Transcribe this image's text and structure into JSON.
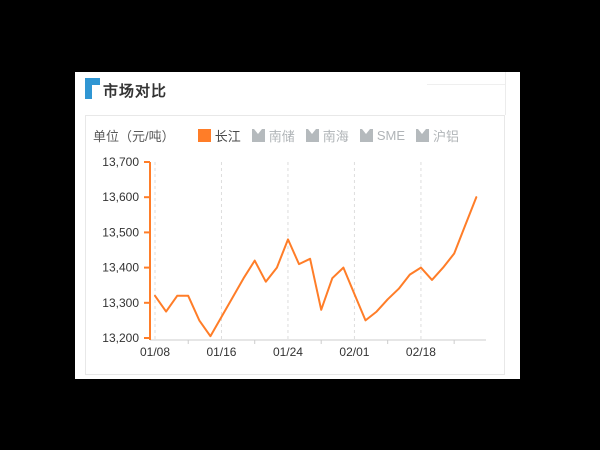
{
  "page": {
    "background": "#000000",
    "panel_background": "#ffffff"
  },
  "header": {
    "title": "市场对比",
    "accent_color": "#3096d3"
  },
  "legend": {
    "unit_label": "单位（元/吨）",
    "items": [
      {
        "label": "长江",
        "active": true,
        "color": "#ff7d28"
      },
      {
        "label": "南储",
        "active": false,
        "color": "#b5babd"
      },
      {
        "label": "南海",
        "active": false,
        "color": "#b5babd"
      },
      {
        "label": "SME",
        "active": false,
        "color": "#b5babd"
      },
      {
        "label": "沪铝",
        "active": false,
        "color": "#b5babd"
      }
    ]
  },
  "chart_data": {
    "type": "line",
    "title": "市场对比",
    "ylabel": "单位（元/吨）",
    "series": [
      {
        "name": "长江",
        "color": "#ff7d28",
        "values": [
          13320,
          13275,
          13320,
          13320,
          13250,
          13205,
          13260,
          13315,
          13370,
          13420,
          13360,
          13400,
          13480,
          13410,
          13425,
          13280,
          13370,
          13400,
          13325,
          13250,
          13275,
          13310,
          13340,
          13380,
          13400,
          13365,
          13400,
          13440,
          13520,
          13600
        ]
      }
    ],
    "inactive_series": [
      "南储",
      "南海",
      "SME",
      "沪铝"
    ],
    "x_axis": {
      "tick_labels": [
        "01/08",
        "01/16",
        "01/24",
        "02/01",
        "02/18"
      ],
      "tick_point_indices": [
        0,
        6,
        12,
        18,
        24
      ],
      "num_points": 30,
      "label_color": "#333333",
      "line_color": "#cccccc"
    },
    "y_axis": {
      "min": 13200,
      "max": 13700,
      "tick_labels": [
        "13,700",
        "13,600",
        "13,500",
        "13,400",
        "13,300",
        "13,200"
      ],
      "tick_values": [
        13700,
        13600,
        13500,
        13400,
        13300,
        13200
      ],
      "label_color": "#333333",
      "axis_color": "#ff7d28"
    },
    "grid": {
      "vertical_dashed": true,
      "gridline_color": "#dddddd"
    },
    "legend_position": "top-right"
  }
}
